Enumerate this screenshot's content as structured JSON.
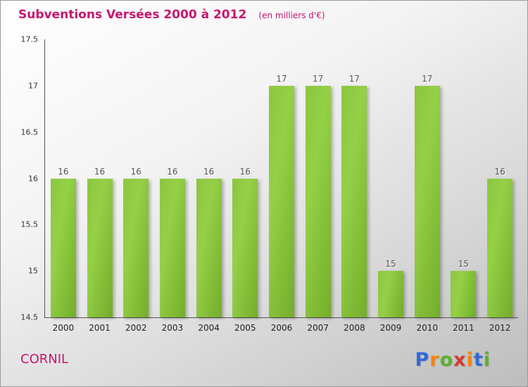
{
  "title": {
    "text": "Subventions Versées 2000 à 2012",
    "subtitle": "(en milliers d'€)"
  },
  "footer": {
    "org": "CORNIL",
    "brand_letters": [
      {
        "ch": "P",
        "color": "#2f6bd8"
      },
      {
        "ch": "r",
        "color": "#f5820b"
      },
      {
        "ch": "o",
        "color": "#5cb12d"
      },
      {
        "ch": "x",
        "color": "#d23b2e"
      },
      {
        "ch": "i",
        "color": "#f5820b"
      },
      {
        "ch": "t",
        "color": "#2f6bd8"
      },
      {
        "ch": "i",
        "color": "#5cb12d"
      }
    ]
  },
  "chart_data": {
    "type": "bar",
    "title": "Subventions Versées 2000 à 2012",
    "subtitle": "(en milliers d'€)",
    "categories": [
      "2000",
      "2001",
      "2002",
      "2003",
      "2004",
      "2005",
      "2006",
      "2007",
      "2008",
      "2009",
      "2010",
      "2011",
      "2012"
    ],
    "values": [
      16,
      16,
      16,
      16,
      16,
      16,
      17,
      17,
      17,
      15,
      17,
      15,
      16
    ],
    "xlabel": "",
    "ylabel": "",
    "ylim": [
      14.5,
      17.5
    ],
    "yticks": [
      14.5,
      15,
      15.5,
      16,
      16.5,
      17,
      17.5
    ],
    "grid": false,
    "legend": "none",
    "bar_color": "#76b82a"
  }
}
